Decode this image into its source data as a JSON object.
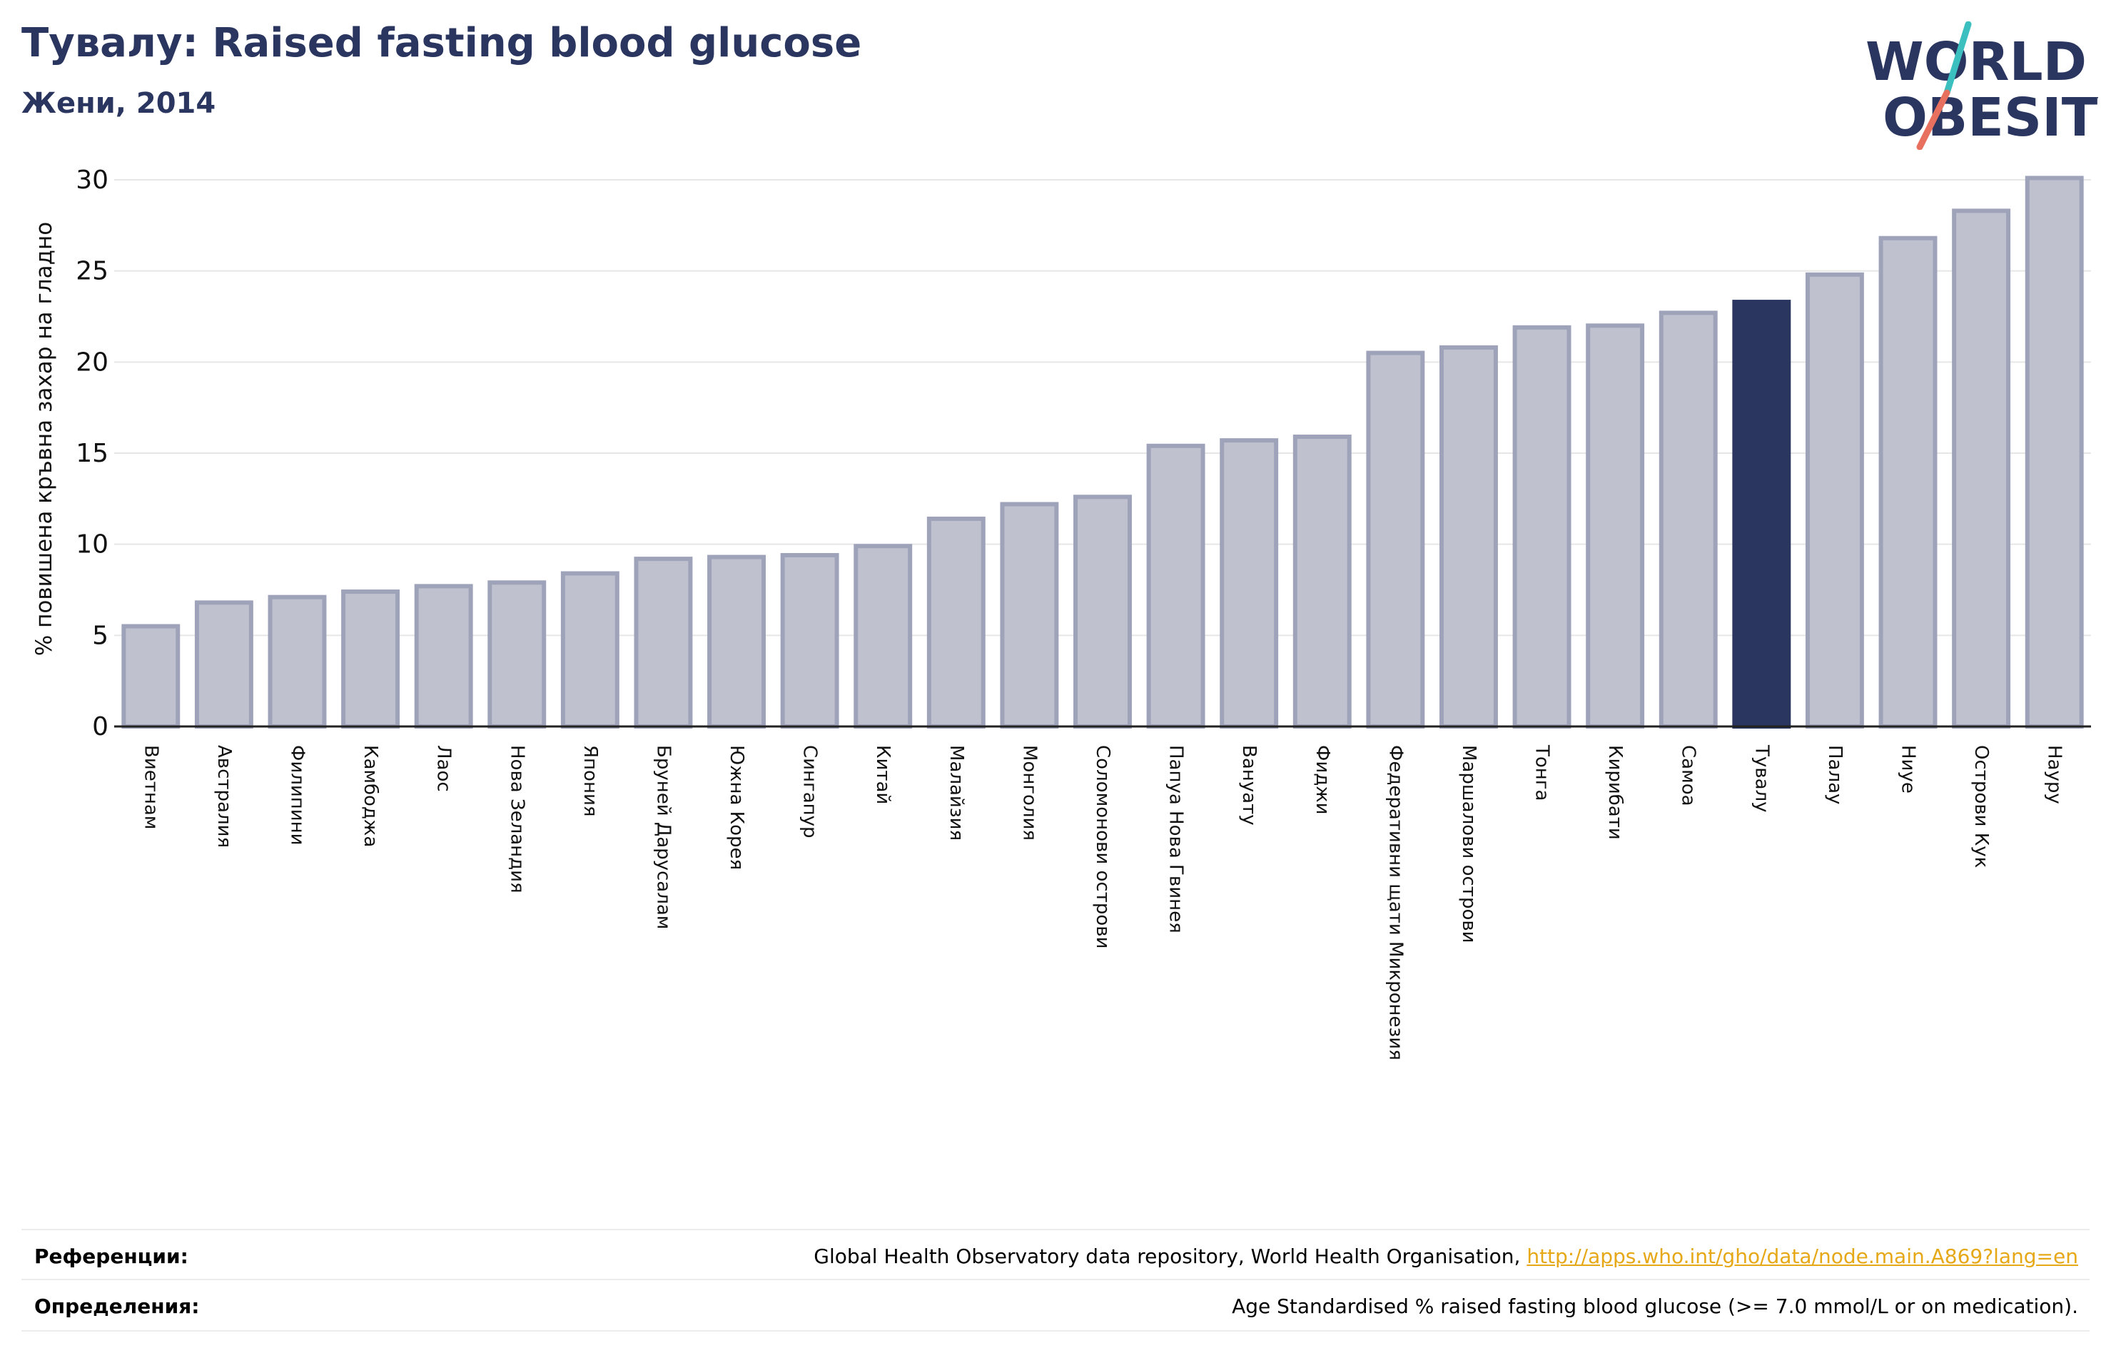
{
  "header": {
    "title": "Тувалу: Raised fasting blood glucose",
    "subtitle": "Жени, 2014"
  },
  "logo": {
    "line1": "WORLD",
    "line2": "OBESITY"
  },
  "colors": {
    "highlight_bar": "#2a365f",
    "other_bar": "#bfc1cf",
    "other_bar_border": "#9ea3ba",
    "title": "#2a365f",
    "link": "#e6a817",
    "logo_teal": "#3bbfbf",
    "logo_coral": "#e8705f"
  },
  "chart_data": {
    "type": "bar",
    "title": "Тувалу: Raised fasting blood glucose",
    "subtitle": "Жени, 2014",
    "ylabel": "% повишена кръвна захар на гладно",
    "xlabel": "",
    "ylim": [
      0,
      30
    ],
    "yticks": [
      0,
      5,
      10,
      15,
      20,
      25,
      30
    ],
    "grid": true,
    "highlight": "Тувалу",
    "categories": [
      "Виетнам",
      "Австралия",
      "Филипини",
      "Камбоджа",
      "Лаос",
      "Нова Зеландия",
      "Япония",
      "Бруней Дарусалам",
      "Южна Корея",
      "Сингапур",
      "Китай",
      "Малайзия",
      "Монголия",
      "Соломонови острови",
      "Папуа Нова Гвинея",
      "Вануату",
      "Фиджи",
      "Федеративни щати Микронезия",
      "Маршалови острови",
      "Тонга",
      "Кирибати",
      "Самоа",
      "Тувалу",
      "Палау",
      "Ниуе",
      "Острови Кук",
      "Науру"
    ],
    "values": [
      5.5,
      6.8,
      7.1,
      7.4,
      7.7,
      7.9,
      8.4,
      9.2,
      9.3,
      9.4,
      9.9,
      11.4,
      12.2,
      12.6,
      15.4,
      15.7,
      15.9,
      20.5,
      20.8,
      21.9,
      22.0,
      22.7,
      23.3,
      24.8,
      26.8,
      28.3,
      30.1
    ]
  },
  "footer": {
    "references_label": "Референции:",
    "references_text": "Global Health Observatory data repository, World Health Organisation, ",
    "references_link": "http://apps.who.int/gho/data/node.main.A869?lang=en",
    "definitions_label": "Определения:",
    "definitions_text": "Age Standardised % raised fasting blood glucose (>= 7.0 mmol/L or on medication)."
  }
}
